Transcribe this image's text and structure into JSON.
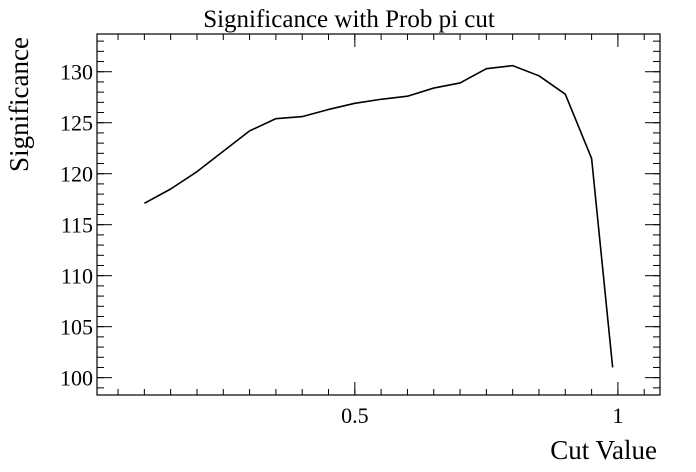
{
  "chart_data": {
    "type": "line",
    "title": "Significance with Prob pi cut",
    "xlabel": "Cut Value",
    "ylabel": "Significance",
    "xlim": [
      0.01,
      1.08
    ],
    "ylim": [
      98.3,
      133.7
    ],
    "x_ticks": [
      {
        "value": 0.5,
        "label": "0.5"
      },
      {
        "value": 1.0,
        "label": "1"
      }
    ],
    "y_ticks": [
      {
        "value": 100,
        "label": "100"
      },
      {
        "value": 105,
        "label": "105"
      },
      {
        "value": 110,
        "label": "110"
      },
      {
        "value": 115,
        "label": "115"
      },
      {
        "value": 120,
        "label": "120"
      },
      {
        "value": 125,
        "label": "125"
      },
      {
        "value": 130,
        "label": "130"
      }
    ],
    "x_minor_step": 0.05,
    "y_minor_step": 1,
    "grid": false,
    "series": [
      {
        "x": [
          0.1,
          0.15,
          0.2,
          0.25,
          0.3,
          0.35,
          0.4,
          0.45,
          0.5,
          0.55,
          0.6,
          0.65,
          0.7,
          0.75,
          0.8,
          0.85,
          0.9,
          0.95,
          0.99
        ],
        "y": [
          117.1,
          118.5,
          120.2,
          122.2,
          124.2,
          125.4,
          125.6,
          126.3,
          126.9,
          127.3,
          127.6,
          128.4,
          128.9,
          130.3,
          130.6,
          129.6,
          127.8,
          121.5,
          101.0
        ],
        "color": "#000000"
      }
    ]
  }
}
